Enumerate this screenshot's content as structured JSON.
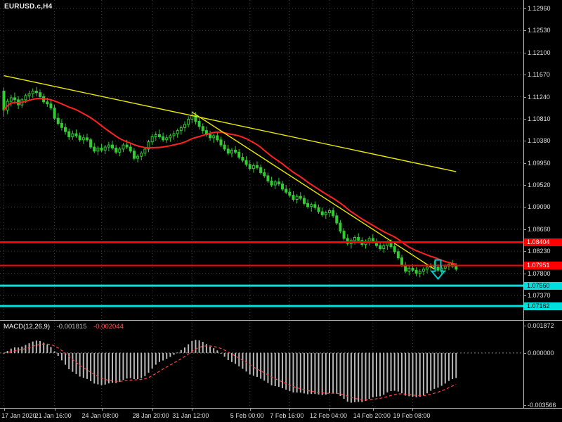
{
  "window": {
    "symbol_label": "EURUSD.c,H4"
  },
  "colors": {
    "background": "#000000",
    "candle": "#33cc33",
    "ma": "#ff2222",
    "grid": "#3c3c3c",
    "axis_text": "#dcdcdc",
    "separator": "#b4b4b4",
    "macd_bar": "#b8b8b8",
    "macd_signal": "#ff4444"
  },
  "chart_data": {
    "type": "candlestick",
    "symbol": "EURUSD.c",
    "timeframe": "H4",
    "main": {
      "ylim": [
        1.0689,
        1.13124
      ],
      "price_ticks": [
        "1.12960",
        "1.12530",
        "1.12100",
        "1.11670",
        "1.11240",
        "1.10810",
        "1.10380",
        "1.09950",
        "1.09520",
        "1.09090",
        "1.08660",
        "1.08230",
        "1.07800",
        "1.07370"
      ],
      "candles": [
        [
          1.1135,
          1.1142,
          1.1085,
          1.1098
        ],
        [
          1.1098,
          1.112,
          1.109,
          1.1115
        ],
        [
          1.1115,
          1.1128,
          1.1105,
          1.1122
        ],
        [
          1.1122,
          1.1132,
          1.111,
          1.1118
        ],
        [
          1.1118,
          1.1125,
          1.11,
          1.1108
        ],
        [
          1.1108,
          1.1122,
          1.1102,
          1.1118
        ],
        [
          1.1118,
          1.113,
          1.1112,
          1.1126
        ],
        [
          1.1126,
          1.1136,
          1.1118,
          1.113
        ],
        [
          1.113,
          1.114,
          1.1122,
          1.1135
        ],
        [
          1.1135,
          1.1143,
          1.1126,
          1.1132
        ],
        [
          1.1132,
          1.1138,
          1.112,
          1.1124
        ],
        [
          1.1124,
          1.113,
          1.111,
          1.1114
        ],
        [
          1.1114,
          1.1122,
          1.1104,
          1.111
        ],
        [
          1.111,
          1.1118,
          1.1098,
          1.1102
        ],
        [
          1.1102,
          1.1108,
          1.1078,
          1.1082
        ],
        [
          1.1082,
          1.1092,
          1.1068,
          1.1072
        ],
        [
          1.1072,
          1.108,
          1.1058,
          1.1064
        ],
        [
          1.1064,
          1.1072,
          1.105,
          1.1056
        ],
        [
          1.1056,
          1.1062,
          1.104,
          1.1046
        ],
        [
          1.1046,
          1.1058,
          1.104,
          1.1052
        ],
        [
          1.1052,
          1.106,
          1.1044,
          1.1048
        ],
        [
          1.1048,
          1.1054,
          1.1036,
          1.104
        ],
        [
          1.104,
          1.105,
          1.1032,
          1.1044
        ],
        [
          1.1044,
          1.1052,
          1.1036,
          1.104
        ],
        [
          1.104,
          1.1044,
          1.1022,
          1.1026
        ],
        [
          1.1026,
          1.1034,
          1.1014,
          1.1018
        ],
        [
          1.1018,
          1.1028,
          1.101,
          1.1024
        ],
        [
          1.1024,
          1.1032,
          1.1016,
          1.102
        ],
        [
          1.102,
          1.103,
          1.1012,
          1.1026
        ],
        [
          1.1026,
          1.1036,
          1.1018,
          1.103
        ],
        [
          1.103,
          1.1038,
          1.102,
          1.1024
        ],
        [
          1.1024,
          1.103,
          1.1012,
          1.1016
        ],
        [
          1.1016,
          1.1026,
          1.1008,
          1.1022
        ],
        [
          1.1022,
          1.1034,
          1.1016,
          1.103
        ],
        [
          1.103,
          1.104,
          1.1022,
          1.1026
        ],
        [
          1.1026,
          1.1032,
          1.1014,
          1.1018
        ],
        [
          1.1018,
          1.1024,
          1.1,
          1.1004
        ],
        [
          1.1004,
          1.1012,
          1.0996,
          1.1008
        ],
        [
          1.1008,
          1.1018,
          1.1,
          1.1014
        ],
        [
          1.1014,
          1.1026,
          1.1008,
          1.1022
        ],
        [
          1.1022,
          1.104,
          1.1016,
          1.1036
        ],
        [
          1.1036,
          1.1052,
          1.103,
          1.1046
        ],
        [
          1.1046,
          1.1056,
          1.1038,
          1.105
        ],
        [
          1.105,
          1.106,
          1.1042,
          1.1046
        ],
        [
          1.1046,
          1.1054,
          1.1036,
          1.104
        ],
        [
          1.104,
          1.105,
          1.1034,
          1.1044
        ],
        [
          1.1044,
          1.1052,
          1.1036,
          1.1048
        ],
        [
          1.1048,
          1.1058,
          1.104,
          1.1052
        ],
        [
          1.1052,
          1.1062,
          1.1044,
          1.1058
        ],
        [
          1.1058,
          1.1068,
          1.105,
          1.1064
        ],
        [
          1.1064,
          1.1076,
          1.1056,
          1.107
        ],
        [
          1.107,
          1.1086,
          1.1064,
          1.108
        ],
        [
          1.108,
          1.1096,
          1.1072,
          1.1088
        ],
        [
          1.1088,
          1.1094,
          1.107,
          1.1076
        ],
        [
          1.1076,
          1.1082,
          1.106,
          1.1066
        ],
        [
          1.1066,
          1.1072,
          1.1052,
          1.1058
        ],
        [
          1.1058,
          1.1066,
          1.1046,
          1.105
        ],
        [
          1.105,
          1.1058,
          1.1038,
          1.1044
        ],
        [
          1.1044,
          1.1052,
          1.1034,
          1.1048
        ],
        [
          1.1048,
          1.1054,
          1.1036,
          1.104
        ],
        [
          1.104,
          1.1046,
          1.1026,
          1.103
        ],
        [
          1.103,
          1.1038,
          1.1018,
          1.1022
        ],
        [
          1.1022,
          1.103,
          1.101,
          1.1014
        ],
        [
          1.1014,
          1.1024,
          1.1006,
          1.102
        ],
        [
          1.102,
          1.1028,
          1.1012,
          1.1016
        ],
        [
          1.1016,
          1.1022,
          1.1002,
          1.1006
        ],
        [
          1.1006,
          1.1014,
          1.0996,
          1.1
        ],
        [
          1.1,
          1.1008,
          1.0988,
          1.0992
        ],
        [
          1.0992,
          1.1,
          1.098,
          1.0984
        ],
        [
          1.0984,
          1.0994,
          1.0976,
          1.099
        ],
        [
          1.099,
          1.0998,
          1.0982,
          1.0986
        ],
        [
          1.0986,
          1.0992,
          1.0972,
          1.0976
        ],
        [
          1.0976,
          1.0984,
          1.0966,
          1.097
        ],
        [
          1.097,
          1.0976,
          1.0956,
          1.096
        ],
        [
          1.096,
          1.0968,
          1.0948,
          1.0952
        ],
        [
          1.0952,
          1.0962,
          1.0944,
          1.0958
        ],
        [
          1.0958,
          1.0966,
          1.095,
          1.0954
        ],
        [
          1.0954,
          1.096,
          1.094,
          1.0944
        ],
        [
          1.0944,
          1.0952,
          1.0934,
          1.0938
        ],
        [
          1.0938,
          1.0946,
          1.0928,
          1.0932
        ],
        [
          1.0932,
          1.094,
          1.092,
          1.0924
        ],
        [
          1.0924,
          1.0934,
          1.0916,
          1.093
        ],
        [
          1.093,
          1.0938,
          1.0922,
          1.0926
        ],
        [
          1.0926,
          1.0932,
          1.0912,
          1.0916
        ],
        [
          1.0916,
          1.0924,
          1.0906,
          1.091
        ],
        [
          1.091,
          1.0918,
          1.09,
          1.0914
        ],
        [
          1.0914,
          1.092,
          1.0904,
          1.0908
        ],
        [
          1.0908,
          1.0914,
          1.0896,
          1.09
        ],
        [
          1.09,
          1.0908,
          1.089,
          1.0894
        ],
        [
          1.0894,
          1.0902,
          1.0886,
          1.0898
        ],
        [
          1.0898,
          1.0906,
          1.089,
          1.0902
        ],
        [
          1.0902,
          1.0908,
          1.0888,
          1.0892
        ],
        [
          1.0892,
          1.0898,
          1.0874,
          1.0878
        ],
        [
          1.0878,
          1.0884,
          1.0858,
          1.0862
        ],
        [
          1.0862,
          1.0868,
          1.0844,
          1.0848
        ],
        [
          1.0848,
          1.0856,
          1.0834,
          1.0838
        ],
        [
          1.0838,
          1.0848,
          1.0828,
          1.0844
        ],
        [
          1.0844,
          1.0854,
          1.0836,
          1.085
        ],
        [
          1.085,
          1.0858,
          1.084,
          1.0844
        ],
        [
          1.0844,
          1.085,
          1.0832,
          1.0836
        ],
        [
          1.0836,
          1.0846,
          1.0828,
          1.0842
        ],
        [
          1.0842,
          1.0852,
          1.0834,
          1.0848
        ],
        [
          1.0848,
          1.0856,
          1.0838,
          1.0842
        ],
        [
          1.0842,
          1.0848,
          1.083,
          1.0834
        ],
        [
          1.0834,
          1.0842,
          1.0824,
          1.0828
        ],
        [
          1.0828,
          1.0838,
          1.082,
          1.0834
        ],
        [
          1.0834,
          1.0844,
          1.0826,
          1.084
        ],
        [
          1.084,
          1.0846,
          1.0828,
          1.0832
        ],
        [
          1.0832,
          1.0838,
          1.0818,
          1.0822
        ],
        [
          1.0822,
          1.0828,
          1.0806,
          1.081
        ],
        [
          1.081,
          1.0816,
          1.0792,
          1.0796
        ],
        [
          1.0796,
          1.0802,
          1.078,
          1.0784
        ],
        [
          1.0784,
          1.0794,
          1.0776,
          1.079
        ],
        [
          1.079,
          1.0798,
          1.0782,
          1.0786
        ],
        [
          1.0786,
          1.0792,
          1.0774,
          1.078
        ],
        [
          1.078,
          1.0788,
          1.0772,
          1.0784
        ],
        [
          1.0784,
          1.0792,
          1.0776,
          1.0788
        ],
        [
          1.0788,
          1.0796,
          1.078,
          1.0792
        ],
        [
          1.0792,
          1.08,
          1.0784,
          1.0796
        ],
        [
          1.0796,
          1.0804,
          1.0788,
          1.0792
        ],
        [
          1.0792,
          1.0798,
          1.0782,
          1.0786
        ],
        [
          1.0786,
          1.0794,
          1.0778,
          1.079
        ],
        [
          1.079,
          1.0798,
          1.0782,
          1.0794
        ],
        [
          1.0794,
          1.0802,
          1.0786,
          1.0798
        ],
        [
          1.0798,
          1.0806,
          1.079,
          1.0794
        ],
        [
          1.0794,
          1.08,
          1.0784,
          1.0788
        ]
      ],
      "ma": {
        "period": 20,
        "color": "#ff2222"
      },
      "trendlines": [
        {
          "from_i": 0,
          "from_p": 1.1165,
          "to_i": 125,
          "to_p": 1.0978,
          "color": "#e8e800"
        },
        {
          "from_i": 52,
          "from_p": 1.1094,
          "to_i": 119,
          "to_p": 1.0788,
          "color": "#e8e800"
        }
      ],
      "hlines": [
        {
          "price": 1.08404,
          "color": "#ff0000",
          "width": 3,
          "badge": "1.08404",
          "text_color": "#ffffff"
        },
        {
          "price": 1.07951,
          "color": "#ff0000",
          "width": 2,
          "badge": "1.07951",
          "text_color": "#ffffff"
        },
        {
          "price": 1.0756,
          "color": "#00dede",
          "width": 3,
          "badge": "1.07560",
          "text_color": "#000000"
        },
        {
          "price": 1.07162,
          "color": "#00dede",
          "width": 3,
          "badge": "1.07162",
          "text_color": "#000000"
        }
      ],
      "arrow": {
        "i": 120,
        "price": 1.0806,
        "color": "#00cccc"
      }
    },
    "time_ticks": [
      {
        "label": "17 Jan 2020",
        "i": 0
      },
      {
        "label": "21 Jan 16:00",
        "i": 14
      },
      {
        "label": "24 Jan 08:00",
        "i": 27
      },
      {
        "label": "28 Jan 20:00",
        "i": 41
      },
      {
        "label": "31 Jan 12:00",
        "i": 52
      },
      {
        "label": "5 Feb 00:00",
        "i": 68
      },
      {
        "label": "7 Feb 16:00",
        "i": 79
      },
      {
        "label": "12 Feb 04:00",
        "i": 90
      },
      {
        "label": "14 Feb 20:00",
        "i": 102
      },
      {
        "label": "19 Feb 08:00",
        "i": 113
      }
    ],
    "macd": {
      "label": "MACD(12,26,9)",
      "value_main": "-0.001815",
      "value_signal": "-0.002044",
      "params": [
        12,
        26,
        9
      ],
      "ylim": [
        -0.00375,
        0.0022
      ],
      "ticks": [
        {
          "label": "0.001872",
          "v": 0.001872
        },
        {
          "label": "0.000000",
          "v": 0
        },
        {
          "label": "-0.003566",
          "v": -0.003566
        }
      ]
    }
  }
}
